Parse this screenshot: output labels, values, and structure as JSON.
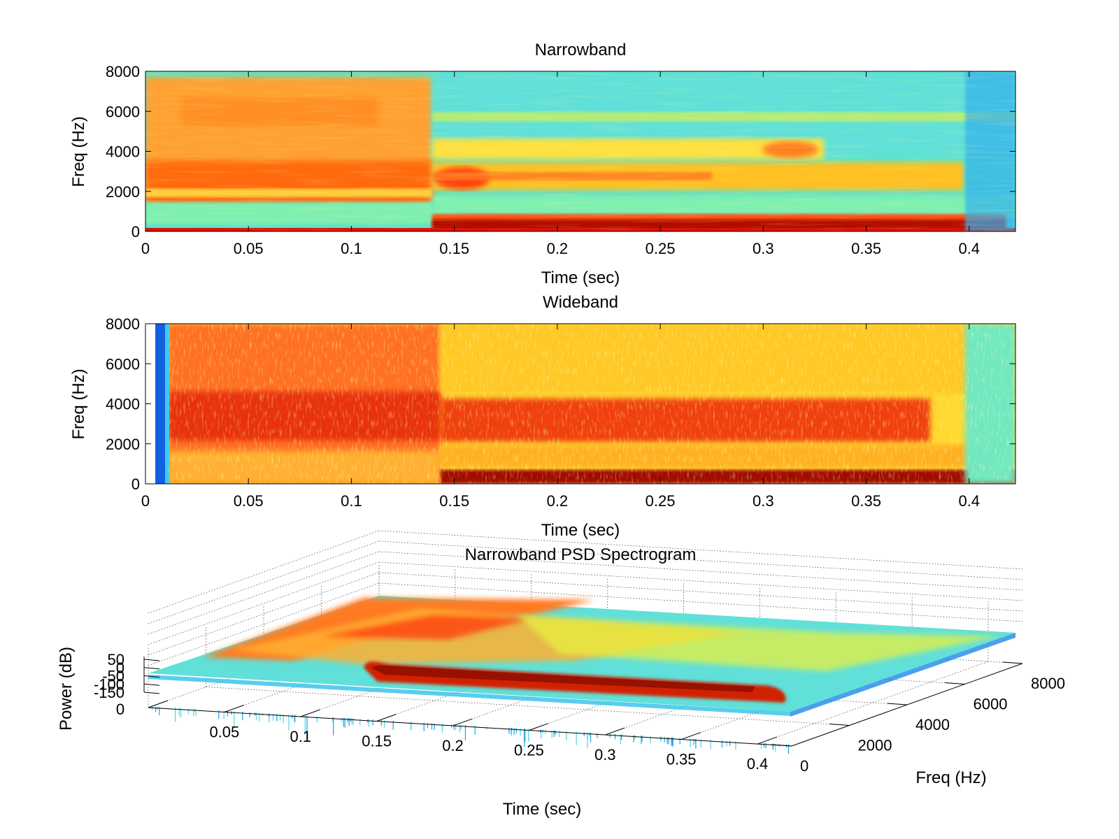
{
  "figure": {
    "colormap": [
      "#00008f",
      "#0000ff",
      "#007fff",
      "#00ffff",
      "#7fff7f",
      "#ffff00",
      "#ff7f00",
      "#ff0000",
      "#7f0000"
    ]
  },
  "chart_data": [
    {
      "type": "heatmap",
      "title": "Narrowband",
      "xlabel": "Time (sec)",
      "ylabel": "Freq (Hz)",
      "xlim": [
        0,
        0.4225
      ],
      "ylim": [
        0,
        8000
      ],
      "x_ticks": [
        0,
        0.05,
        0.1,
        0.15,
        0.2,
        0.25,
        0.3,
        0.35,
        0.4
      ],
      "x_tick_labels": [
        "0",
        "0.05",
        "0.1",
        "0.15",
        "0.2",
        "0.25",
        "0.3",
        "0.35",
        "0.4"
      ],
      "y_ticks": [
        0,
        2000,
        4000,
        6000,
        8000
      ],
      "y_tick_labels": [
        "0",
        "2000",
        "4000",
        "6000",
        "8000"
      ],
      "colormap": "jet",
      "regions": [
        {
          "t": [
            0,
            0.14
          ],
          "f": [
            2000,
            8000
          ],
          "level": "high"
        },
        {
          "t": [
            0,
            0.14
          ],
          "f": [
            2500,
            3800
          ],
          "level": "very high"
        },
        {
          "t": [
            0,
            0.14
          ],
          "f": [
            0,
            1500
          ],
          "level": "low"
        },
        {
          "t": [
            0.14,
            0.42
          ],
          "f": [
            0,
            500
          ],
          "level": "maximum"
        },
        {
          "t": [
            0.14,
            0.4
          ],
          "f": [
            2000,
            3200
          ],
          "level": "high"
        },
        {
          "t": [
            0.14,
            0.42
          ],
          "f": [
            4000,
            8000
          ],
          "level": "low"
        }
      ]
    },
    {
      "type": "heatmap",
      "title": "Wideband",
      "xlabel": "Time (sec)",
      "ylabel": "Freq (Hz)",
      "xlim": [
        0,
        0.4225
      ],
      "ylim": [
        0,
        8000
      ],
      "x_ticks": [
        0,
        0.05,
        0.1,
        0.15,
        0.2,
        0.25,
        0.3,
        0.35,
        0.4
      ],
      "x_tick_labels": [
        "0",
        "0.05",
        "0.1",
        "0.15",
        "0.2",
        "0.25",
        "0.3",
        "0.35",
        "0.4"
      ],
      "y_ticks": [
        0,
        2000,
        4000,
        6000,
        8000
      ],
      "y_tick_labels": [
        "0",
        "2000",
        "4000",
        "6000",
        "8000"
      ],
      "colormap": "jet",
      "regions": [
        {
          "t": [
            0,
            0.01
          ],
          "f": [
            0,
            8000
          ],
          "level": "very low"
        },
        {
          "t": [
            0.01,
            0.14
          ],
          "f": [
            0,
            8000
          ],
          "level": "high"
        },
        {
          "t": [
            0.14,
            0.4
          ],
          "f": [
            0,
            600
          ],
          "level": "maximum"
        },
        {
          "t": [
            0.14,
            0.38
          ],
          "f": [
            2000,
            3800
          ],
          "level": "very high"
        },
        {
          "t": [
            0.14,
            0.4
          ],
          "f": [
            4000,
            8000
          ],
          "level": "medium"
        },
        {
          "t": [
            0.4,
            0.42
          ],
          "f": [
            0,
            8000
          ],
          "level": "low"
        }
      ]
    },
    {
      "type": "surface",
      "title": "Narrowband PSD Spectrogram",
      "xlabel": "Time (sec)",
      "ylabel": "Freq (Hz)",
      "zlabel": "Power (dB)",
      "x_tick_labels": [
        "0",
        "0.05",
        "0.1",
        "0.15",
        "0.2",
        "0.25",
        "0.3",
        "0.35",
        "0.4"
      ],
      "y_tick_labels": [
        "0",
        "2000",
        "4000",
        "6000",
        "8000"
      ],
      "z_tick_labels": [
        "50",
        "0",
        "-50",
        "-100",
        "-150"
      ],
      "colormap": "jet",
      "grid": true
    }
  ]
}
